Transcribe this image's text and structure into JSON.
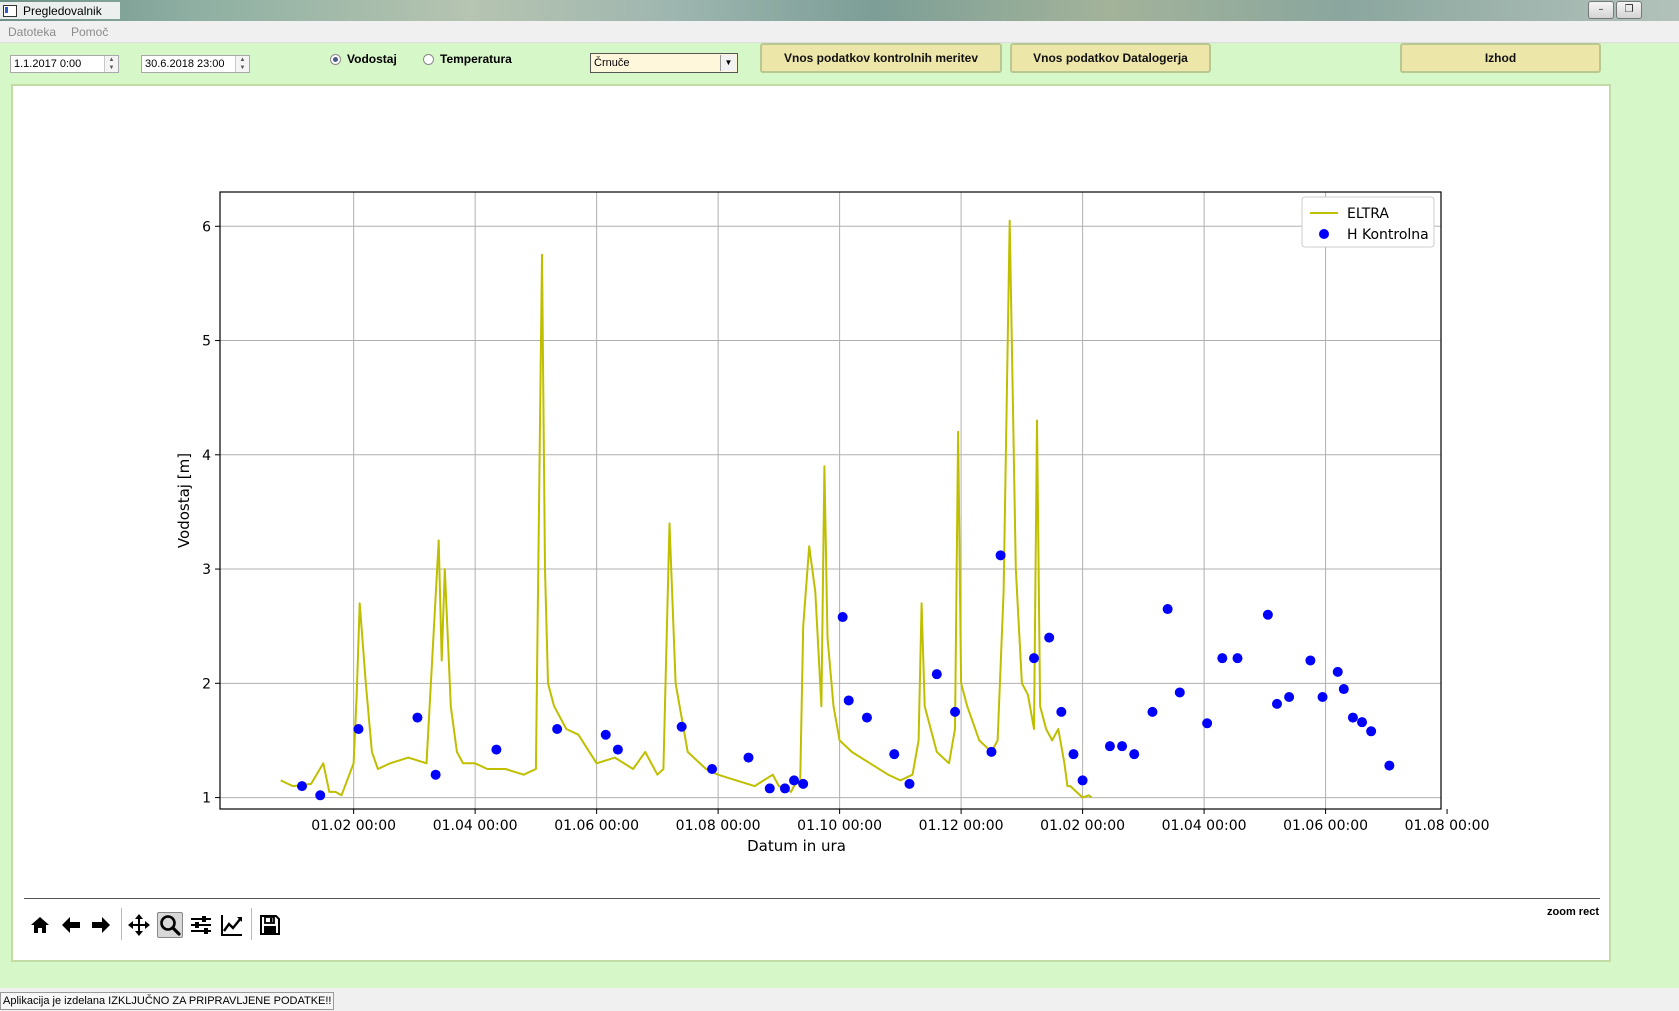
{
  "window": {
    "title": "Pregledovalnik"
  },
  "menu": {
    "items": [
      "Datoteka",
      "Pomoč"
    ]
  },
  "controls": {
    "date_from": "1.1.2017 0:00",
    "date_to": "30.6.2018 23:00",
    "radio": [
      {
        "label": "Vodostaj",
        "checked": true
      },
      {
        "label": "Temperatura",
        "checked": false
      }
    ],
    "station": "Črnuče",
    "buttons": {
      "control": "Vnos podatkov kontrolnih meritev",
      "datalogger": "Vnos podatkov Datalogerja",
      "exit": "Izhod"
    }
  },
  "toolbar": {
    "tools": [
      "home-icon",
      "back-icon",
      "forward-icon",
      "pan-icon",
      "zoom-icon",
      "configure-icon",
      "edit-axis-icon",
      "save-icon"
    ],
    "mode": "zoom rect"
  },
  "status": {
    "text": "Aplikacija je izdelana IZKLJUČNO ZA PRIPRAVLJENE PODATKE!!"
  },
  "chart_data": {
    "type": "line",
    "xlabel": "Datum in ura",
    "ylabel": "Vodostaj [m]",
    "ylim": [
      0.9,
      6.3
    ],
    "yticks": [
      1,
      2,
      3,
      4,
      5,
      6
    ],
    "xlim": [
      -1.2,
      18.9
    ],
    "xticks": [
      {
        "label": "01.02 00:00",
        "pos": 1
      },
      {
        "label": "01.04 00:00",
        "pos": 3
      },
      {
        "label": "01.06 00:00",
        "pos": 5
      },
      {
        "label": "01.08 00:00",
        "pos": 7
      },
      {
        "label": "01.10 00:00",
        "pos": 9
      },
      {
        "label": "01.12 00:00",
        "pos": 11
      },
      {
        "label": "01.02 00:00",
        "pos": 13
      },
      {
        "label": "01.04 00:00",
        "pos": 15
      },
      {
        "label": "01.06 00:00",
        "pos": 17
      },
      {
        "label": "01.08 00:00",
        "pos": 19
      }
    ],
    "grid": true,
    "legend": "top-right",
    "series": [
      {
        "name": "ELTRA",
        "kind": "line",
        "color": "#bfbf00",
        "x": [
          -0.2,
          0.0,
          0.3,
          0.5,
          0.6,
          0.7,
          0.8,
          1.0,
          1.05,
          1.1,
          1.2,
          1.3,
          1.4,
          1.6,
          1.9,
          2.2,
          2.4,
          2.45,
          2.5,
          2.6,
          2.7,
          2.8,
          3.0,
          3.2,
          3.5,
          3.8,
          4.0,
          4.1,
          4.15,
          4.2,
          4.3,
          4.5,
          4.7,
          5.0,
          5.3,
          5.6,
          5.8,
          6.0,
          6.1,
          6.2,
          6.3,
          6.5,
          6.8,
          7.0,
          7.3,
          7.6,
          7.9,
          8.0,
          8.2,
          8.3,
          8.35,
          8.4,
          8.5,
          8.6,
          8.7,
          8.75,
          8.8,
          8.9,
          9.0,
          9.2,
          9.5,
          9.8,
          10.0,
          10.2,
          10.3,
          10.35,
          10.4,
          10.6,
          10.8,
          10.9,
          10.95,
          11.0,
          11.1,
          11.3,
          11.5,
          11.6,
          11.7,
          11.8,
          11.9,
          12.0,
          12.1,
          12.2,
          12.25,
          12.3,
          12.4,
          12.5,
          12.6,
          12.7,
          12.75,
          12.8,
          12.9,
          13.0,
          13.1,
          13.15
        ],
        "y": [
          1.15,
          1.1,
          1.12,
          1.3,
          1.05,
          1.05,
          1.02,
          1.3,
          1.9,
          2.7,
          2.0,
          1.4,
          1.25,
          1.3,
          1.35,
          1.3,
          3.25,
          2.2,
          3.0,
          1.8,
          1.4,
          1.3,
          1.3,
          1.25,
          1.25,
          1.2,
          1.25,
          5.75,
          3.0,
          2.0,
          1.8,
          1.6,
          1.55,
          1.3,
          1.35,
          1.25,
          1.4,
          1.2,
          1.25,
          3.4,
          2.0,
          1.4,
          1.25,
          1.2,
          1.15,
          1.1,
          1.2,
          1.1,
          1.05,
          1.15,
          1.1,
          2.5,
          3.2,
          2.8,
          1.8,
          3.9,
          2.4,
          1.8,
          1.5,
          1.4,
          1.3,
          1.2,
          1.15,
          1.2,
          1.5,
          2.7,
          1.8,
          1.4,
          1.3,
          1.6,
          4.2,
          2.0,
          1.8,
          1.5,
          1.4,
          1.5,
          2.8,
          6.05,
          3.0,
          2.0,
          1.9,
          1.6,
          4.3,
          1.8,
          1.6,
          1.5,
          1.6,
          1.3,
          1.1,
          1.1,
          1.05,
          1.0,
          1.02,
          1.0
        ]
      },
      {
        "name": "H Kontrolna",
        "kind": "scatter",
        "color": "#0000ff",
        "x": [
          0.15,
          0.45,
          1.08,
          2.05,
          2.35,
          3.35,
          4.35,
          5.15,
          5.35,
          6.4,
          6.9,
          7.5,
          7.85,
          8.1,
          8.25,
          8.4,
          9.05,
          9.15,
          9.45,
          9.9,
          10.15,
          10.6,
          10.9,
          11.5,
          11.65,
          12.2,
          12.45,
          12.65,
          12.85,
          13.0,
          13.45,
          13.65,
          13.85,
          14.15,
          14.4,
          14.6,
          15.05,
          15.3,
          15.55,
          16.05,
          16.2,
          16.4,
          16.75,
          16.95,
          17.2,
          17.3,
          17.45,
          17.6,
          17.75,
          18.05
        ],
        "y": [
          1.1,
          1.02,
          1.6,
          1.7,
          1.2,
          1.42,
          1.6,
          1.55,
          1.42,
          1.62,
          1.25,
          1.35,
          1.08,
          1.08,
          1.15,
          1.12,
          2.58,
          1.85,
          1.7,
          1.38,
          1.12,
          2.08,
          1.75,
          1.4,
          3.12,
          2.22,
          2.4,
          1.75,
          1.38,
          1.15,
          1.45,
          1.45,
          1.38,
          1.75,
          2.65,
          1.92,
          1.65,
          2.22,
          2.22,
          2.6,
          1.82,
          1.88,
          2.2,
          1.88,
          2.1,
          1.95,
          1.7,
          1.66,
          1.58,
          1.28
        ]
      }
    ]
  }
}
